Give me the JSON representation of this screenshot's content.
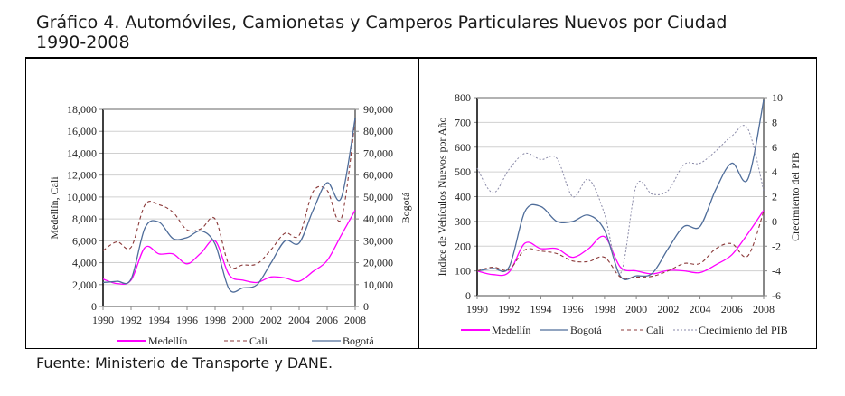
{
  "page": {
    "title_line1": "Gráfico 4. Automóviles, Camionetas y Camperos Particulares Nuevos por Ciudad",
    "title_line2": "1990-2008",
    "source": "Fuente: Ministerio de Transporte y DANE."
  },
  "colors": {
    "medellin": "#ff00ff",
    "cali": "#8b3a3a",
    "bogota": "#4f6d9a",
    "pib": "#8a8aa8",
    "grid": "#d0d0d0"
  },
  "chart_data": [
    {
      "type": "line",
      "title": "",
      "xlabel": "",
      "ylabel": "Medellín, Cali",
      "y2label": "Bogotá",
      "x": [
        1990,
        1991,
        1992,
        1993,
        1994,
        1995,
        1996,
        1997,
        1998,
        1999,
        2000,
        2001,
        2002,
        2003,
        2004,
        2005,
        2006,
        2007,
        2008
      ],
      "xticks": [
        "1990",
        "1992",
        "1994",
        "1996",
        "1998",
        "2000",
        "2002",
        "2004",
        "2006",
        "2008"
      ],
      "ylim": [
        0,
        18000
      ],
      "yticks": [
        "0",
        "2,000",
        "4,000",
        "6,000",
        "8,000",
        "10,000",
        "12,000",
        "14,000",
        "16,000",
        "18,000"
      ],
      "y2lim": [
        0,
        90000
      ],
      "y2ticks": [
        "0",
        "10,000",
        "20,000",
        "30,000",
        "40,000",
        "50,000",
        "60,000",
        "70,000",
        "80,000",
        "90,000"
      ],
      "grid": true,
      "legend_position": "bottom",
      "series": [
        {
          "name": "Medellín",
          "axis": "left",
          "style": "solid",
          "values": [
            2500,
            2100,
            2400,
            5400,
            4800,
            4800,
            3900,
            4900,
            6000,
            2900,
            2400,
            2200,
            2700,
            2600,
            2300,
            3200,
            4200,
            6500,
            8800
          ]
        },
        {
          "name": "Cali",
          "axis": "left",
          "style": "dashed",
          "values": [
            5100,
            5900,
            5400,
            9300,
            9300,
            8600,
            7000,
            7100,
            8000,
            3800,
            3800,
            3900,
            5200,
            6700,
            6500,
            10500,
            10600,
            8000,
            17000
          ]
        },
        {
          "name": "Bogotá",
          "axis": "right",
          "style": "solid",
          "values": [
            11000,
            11500,
            12500,
            36000,
            38500,
            31000,
            31500,
            34500,
            28500,
            8000,
            8500,
            10000,
            20000,
            30000,
            29000,
            44000,
            56500,
            49500,
            86000
          ]
        }
      ]
    },
    {
      "type": "line",
      "title": "",
      "xlabel": "",
      "ylabel": "Indice de Vehículos Nuevos por Año",
      "y2label": "Crecimiento del PIB",
      "x": [
        1990,
        1991,
        1992,
        1993,
        1994,
        1995,
        1996,
        1997,
        1998,
        1999,
        2000,
        2001,
        2002,
        2003,
        2004,
        2005,
        2006,
        2007,
        2008
      ],
      "xticks": [
        "1990",
        "1992",
        "1994",
        "1996",
        "1998",
        "2000",
        "2002",
        "2004",
        "2006",
        "2008"
      ],
      "ylim": [
        0,
        800
      ],
      "yticks": [
        "0",
        "100",
        "200",
        "300",
        "400",
        "500",
        "600",
        "700",
        "800"
      ],
      "y2lim": [
        -6,
        10
      ],
      "y2ticks": [
        "-6",
        "-4",
        "-2",
        "0",
        "2",
        "4",
        "6",
        "8",
        "10"
      ],
      "grid": true,
      "legend_position": "bottom",
      "series": [
        {
          "name": "Medellín",
          "axis": "left",
          "style": "solid",
          "values": [
            100,
            85,
            95,
            212,
            190,
            190,
            155,
            190,
            238,
            115,
            100,
            88,
            102,
            100,
            93,
            125,
            165,
            250,
            345
          ]
        },
        {
          "name": "Bogotá",
          "axis": "left",
          "style": "solid",
          "values": [
            100,
            110,
            115,
            340,
            360,
            300,
            300,
            325,
            265,
            78,
            80,
            90,
            190,
            280,
            280,
            430,
            535,
            470,
            790
          ]
        },
        {
          "name": "Cali",
          "axis": "left",
          "style": "dashed",
          "values": [
            100,
            115,
            105,
            185,
            180,
            170,
            140,
            138,
            155,
            75,
            75,
            78,
            100,
            130,
            130,
            190,
            210,
            160,
            340
          ]
        },
        {
          "name": "Crecimiento del PIB",
          "axis": "right",
          "style": "dotted",
          "values": [
            4.3,
            2.3,
            4.2,
            5.5,
            5.0,
            5.1,
            2.0,
            3.4,
            0.6,
            -4.2,
            2.9,
            2.2,
            2.5,
            4.6,
            4.7,
            5.7,
            6.9,
            7.5,
            2.5
          ]
        }
      ]
    }
  ]
}
